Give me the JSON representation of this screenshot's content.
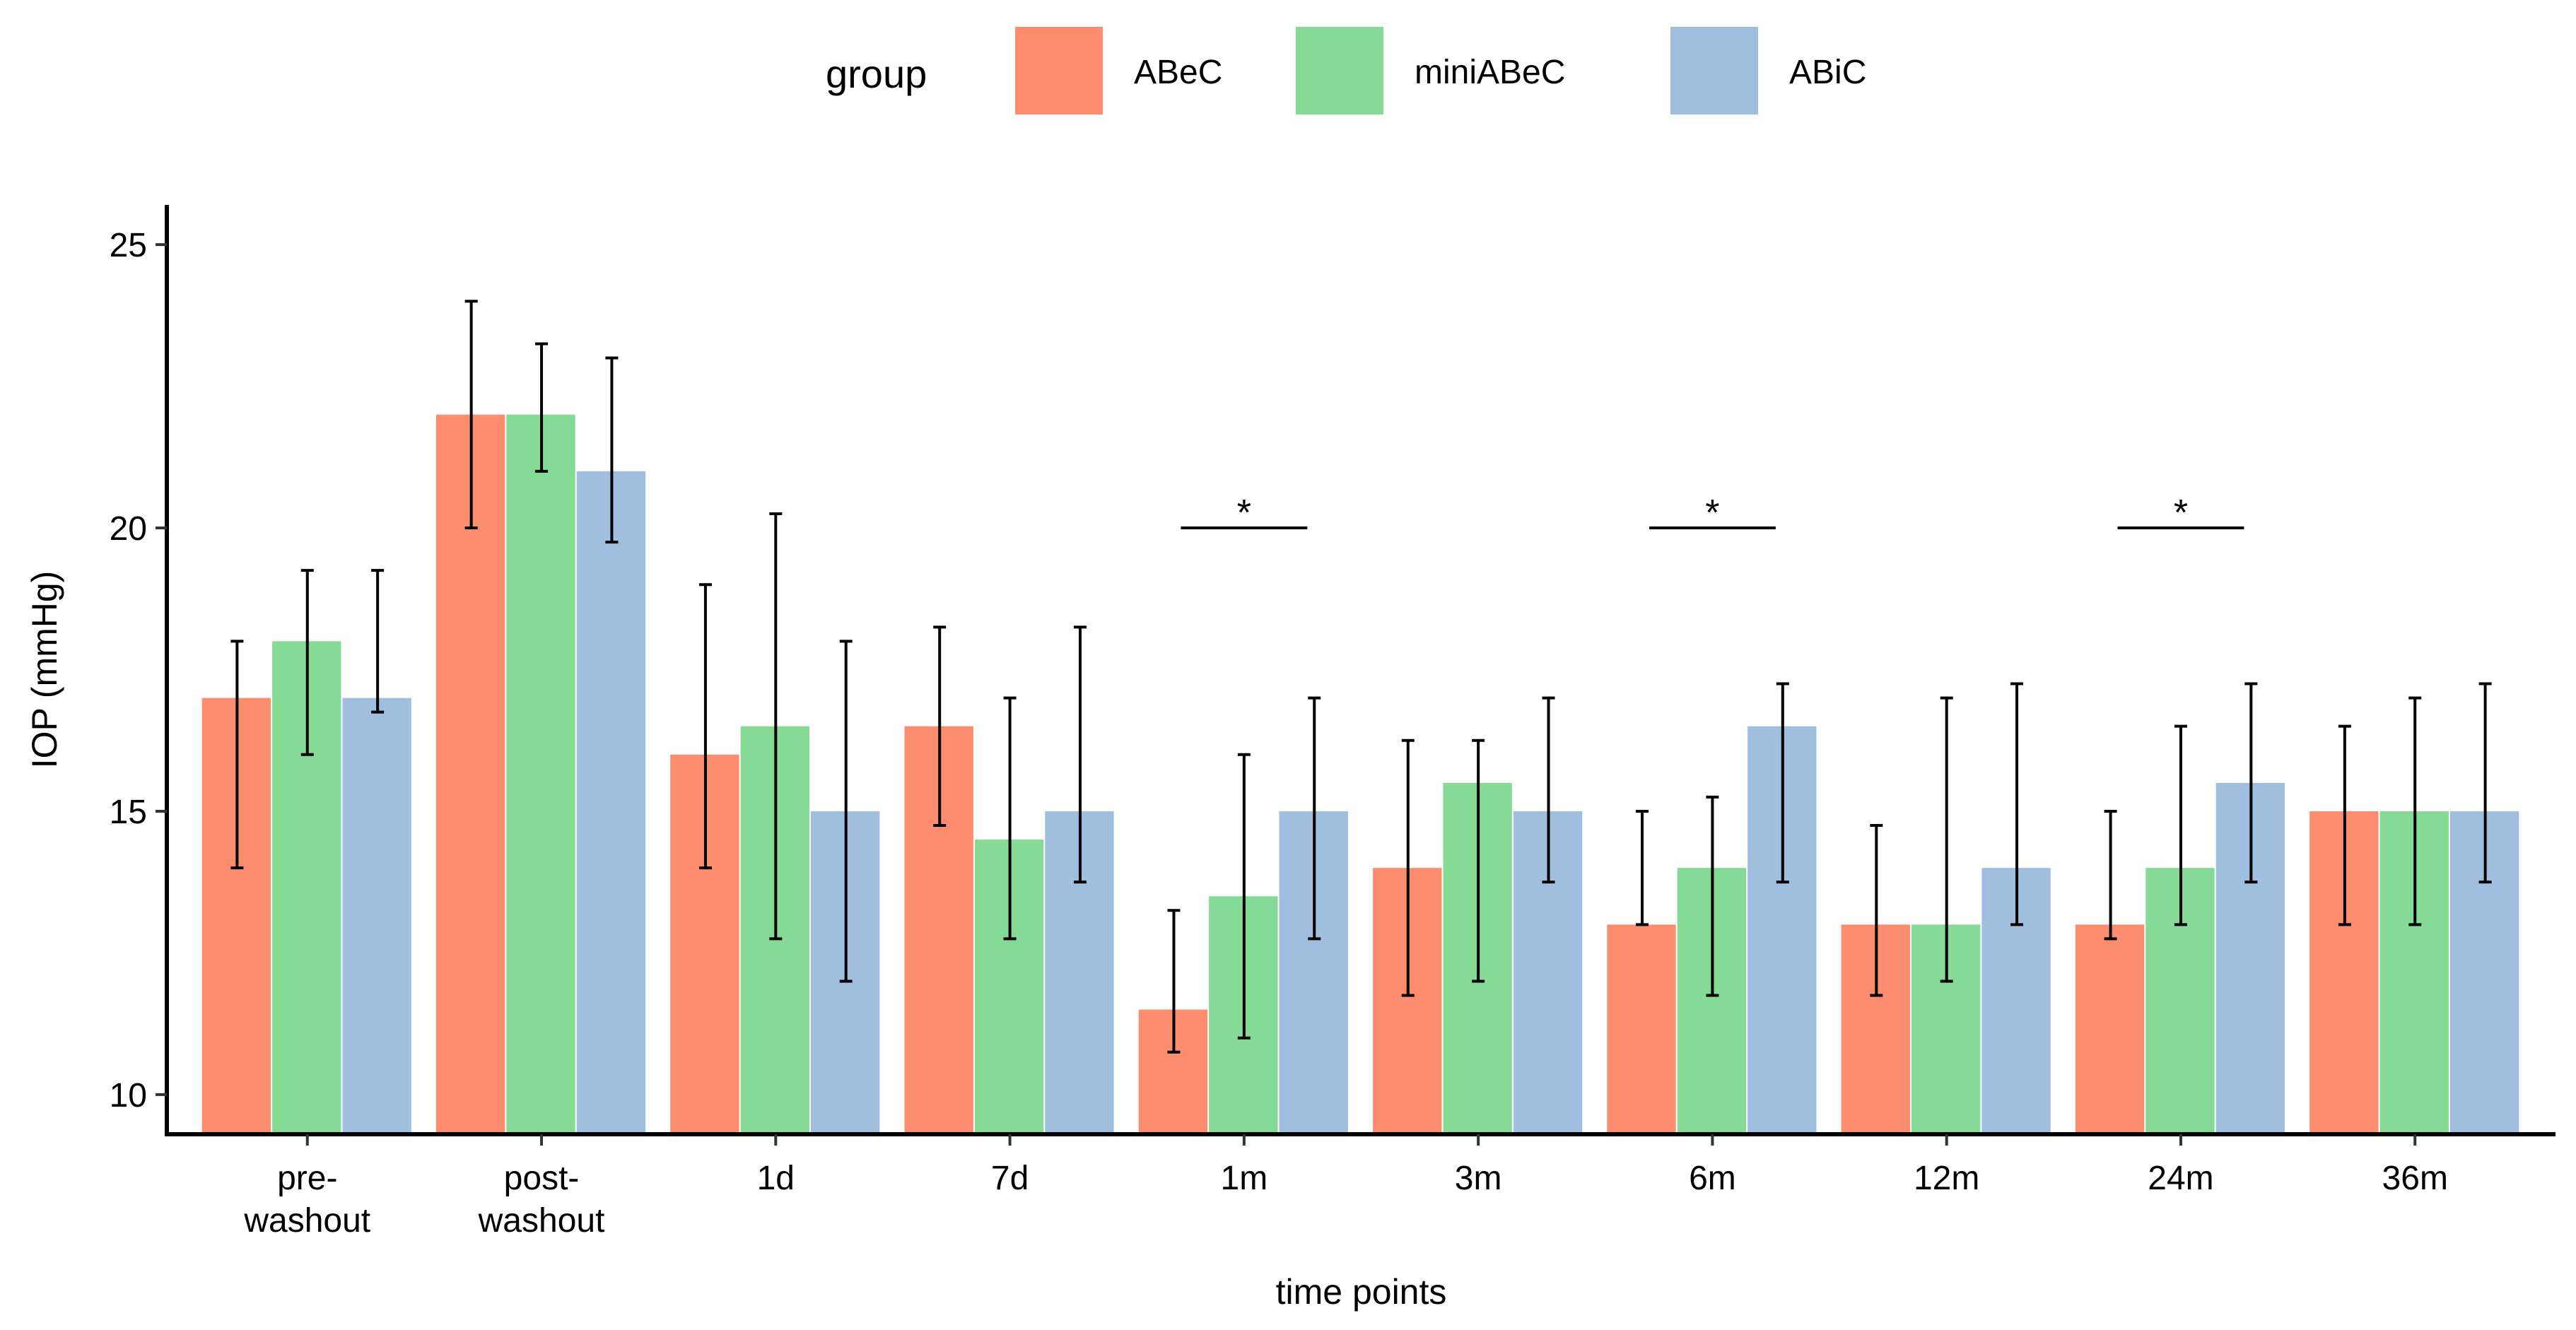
{
  "chart_data": {
    "type": "bar",
    "title": "",
    "xlabel": "time points",
    "ylabel": "IOP (mmHg)",
    "ylim": [
      9.3,
      25.7
    ],
    "yticks": [
      10,
      15,
      20,
      25
    ],
    "grid": false,
    "legend": {
      "title": "group",
      "position": "top"
    },
    "categories": [
      [
        "pre-",
        "washout"
      ],
      [
        "post-",
        "washout"
      ],
      [
        "1d"
      ],
      [
        "7d"
      ],
      [
        "1m"
      ],
      [
        "3m"
      ],
      [
        "6m"
      ],
      [
        "12m"
      ],
      [
        "24m"
      ],
      [
        "36m"
      ]
    ],
    "series": [
      {
        "name": "ABeC",
        "color": "#FC8D6E",
        "values": [
          17,
          22,
          16,
          16.5,
          11.5,
          14,
          13,
          13,
          13,
          15
        ],
        "err_low": [
          14,
          20,
          14,
          14.75,
          10.75,
          11.75,
          13,
          11.75,
          12.75,
          13
        ],
        "err_high": [
          18,
          24,
          19,
          18.25,
          13.25,
          16.25,
          15,
          14.75,
          15,
          16.5
        ]
      },
      {
        "name": "miniABeC",
        "color": "#85DA95",
        "values": [
          18,
          22,
          16.5,
          14.5,
          13.5,
          15.5,
          14,
          13,
          14,
          15
        ],
        "err_low": [
          16,
          21,
          12.75,
          12.75,
          11,
          12,
          11.75,
          12,
          13,
          13
        ],
        "err_high": [
          19.25,
          23.25,
          20.25,
          17,
          16,
          16.25,
          15.25,
          17,
          16.5,
          17
        ]
      },
      {
        "name": "ABiC",
        "color": "#A0BFDF",
        "values": [
          17,
          21,
          15,
          15,
          15,
          15,
          16.5,
          14,
          15.5,
          15
        ],
        "err_low": [
          16.75,
          19.75,
          12,
          13.75,
          12.75,
          13.75,
          13.75,
          13,
          13.75,
          13.75
        ],
        "err_high": [
          19.25,
          23,
          18,
          18.25,
          17,
          17,
          17.25,
          17.25,
          17.25,
          17.25
        ]
      }
    ],
    "annotations": [
      {
        "category_index": 4,
        "label": "*",
        "y": 20
      },
      {
        "category_index": 6,
        "label": "*",
        "y": 20
      },
      {
        "category_index": 8,
        "label": "*",
        "y": 20
      }
    ]
  }
}
